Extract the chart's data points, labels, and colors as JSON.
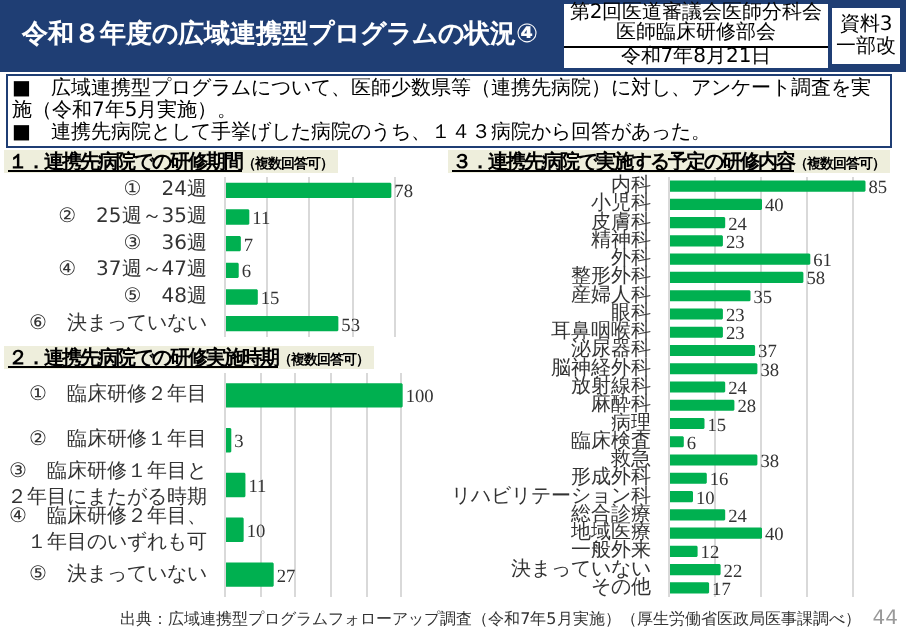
{
  "chart_data": [
    {
      "type": "other",
      "title": "令和８年度の広域連携型プログラムの状況④",
      "annotations": [
        "第2回医道審議会医師分科会",
        "医師臨床研修部会",
        "令和7年8月21日",
        "資料3",
        "一部改",
        "■　広域連携型プログラムについて、医師少数県等（連携先病院）に対し、アンケート調査を実施（令和7年5月実施）。",
        "■　連携先病院として手挙げした病院のうち、１４３病院から回答があった。",
        "出典：広域連携型プログラムフォローアップ調査（令和7年5月実施）（厚生労働省医政局医事課調べ）",
        "44"
      ]
    },
    {
      "type": "bar",
      "orientation": "horizontal",
      "title": "１．連携先病院での研修期間",
      "subtitle": "（複数回答可）",
      "categories": [
        "①　24週",
        "②　25週～35週",
        "③　36週",
        "④　37週～47週",
        "⑤　48週",
        "⑥　決まっていない"
      ],
      "values": [
        78,
        11,
        7,
        6,
        15,
        53
      ],
      "color": "#00b050",
      "data_labels": true,
      "xlim": [
        0,
        100
      ],
      "xticks": [
        {
          "value": 0,
          "label": null
        },
        {
          "value": 20,
          "label": null
        },
        {
          "value": 40,
          "label": null
        },
        {
          "value": 60,
          "label": null
        },
        {
          "value": 80,
          "label": null
        },
        {
          "value": 100,
          "label": null
        }
      ],
      "tick_labels": "y",
      "grid": "x"
    },
    {
      "type": "bar",
      "orientation": "horizontal",
      "title": "２．連携先病院での研修実施時期",
      "subtitle": "（複数回答可）",
      "categories": [
        "①　臨床研修２年目",
        "②　臨床研修１年目",
        "③　臨床研修１年目と２年目にまたがる時期",
        "④　臨床研修２年目、１年目のいずれも可",
        "⑤　決まっていない"
      ],
      "values": [
        100,
        3,
        11,
        10,
        27
      ],
      "color": "#00b050",
      "data_labels": true,
      "xlim": [
        0,
        120
      ],
      "xticks": [
        {
          "value": 0,
          "label": null
        },
        {
          "value": 20,
          "label": null
        },
        {
          "value": 40,
          "label": null
        },
        {
          "value": 60,
          "label": null
        },
        {
          "value": 80,
          "label": null
        },
        {
          "value": 100,
          "label": null
        },
        {
          "value": 120,
          "label": null
        }
      ],
      "tick_labels": "y",
      "grid": "x"
    },
    {
      "type": "bar",
      "orientation": "horizontal",
      "title": "３．連携先病院で実施する予定の研修内容",
      "subtitle": "（複数回答可）",
      "categories": [
        "内科",
        "小児科",
        "皮膚科",
        "精神科",
        "外科",
        "整形外科",
        "産婦人科",
        "眼科",
        "耳鼻咽喉科",
        "泌尿器科",
        "脳神経外科",
        "放射線科",
        "麻酔科",
        "病理",
        "臨床検査",
        "救急",
        "形成外科",
        "リハビリテーション科",
        "総合診療",
        "地域医療",
        "一般外来",
        "決まっていない",
        "その他"
      ],
      "values": [
        85,
        40,
        24,
        23,
        61,
        58,
        35,
        23,
        23,
        37,
        38,
        24,
        28,
        15,
        6,
        38,
        16,
        10,
        24,
        40,
        12,
        22,
        17
      ],
      "color": "#00b050",
      "data_labels": true,
      "xlim": [
        0,
        100
      ],
      "xticks": [
        {
          "value": 0,
          "label": null
        },
        {
          "value": 20,
          "label": null
        },
        {
          "value": 40,
          "label": null
        },
        {
          "value": 60,
          "label": null
        },
        {
          "value": 80,
          "label": null
        },
        {
          "value": 100,
          "label": null
        }
      ],
      "tick_labels": "y",
      "grid": "x"
    }
  ]
}
